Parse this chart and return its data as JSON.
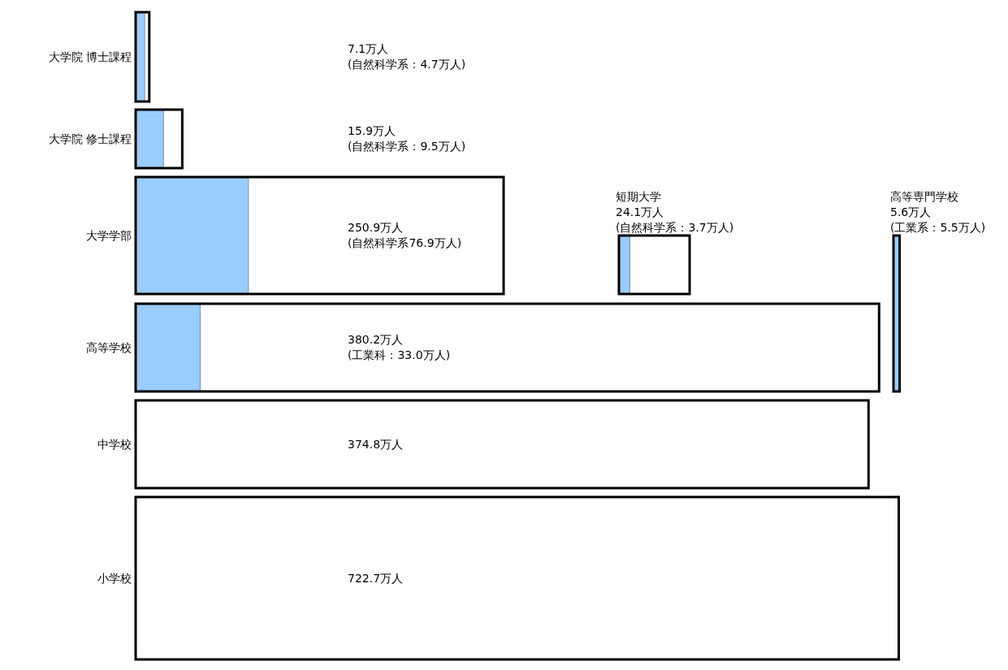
{
  "chart_data": {
    "type": "other",
    "categories": [
      "大学院 博士課程",
      "大学院 修士課程",
      "大学学部",
      "高等学校",
      "中学校",
      "小学校",
      "短期大学",
      "高等専門学校"
    ],
    "series": [
      {
        "values": [
          7.1,
          15.9,
          250.9,
          380.2,
          374.8,
          722.7,
          24.1,
          5.6
        ],
        "value_labels": [
          "7.1万人",
          "15.9万人",
          "250.9万人",
          "380.2万人",
          "374.8万人",
          "722.7万人",
          "24.1万人",
          "5.6万人"
        ],
        "color": "#ffffff"
      },
      {
        "values": [
          4.7,
          9.5,
          76.9,
          33.0,
          null,
          null,
          3.7,
          5.5
        ],
        "value_labels": [
          "(自然科学系：4.7万人)",
          "(自然科学系：9.5万人)",
          "(自然科学系76.9万人)",
          "(工業科：33.0万人)",
          null,
          null,
          "(自然科学系：3.7万人)",
          "(工業系：5.5万人)"
        ],
        "color": "#99ccff"
      }
    ]
  }
}
